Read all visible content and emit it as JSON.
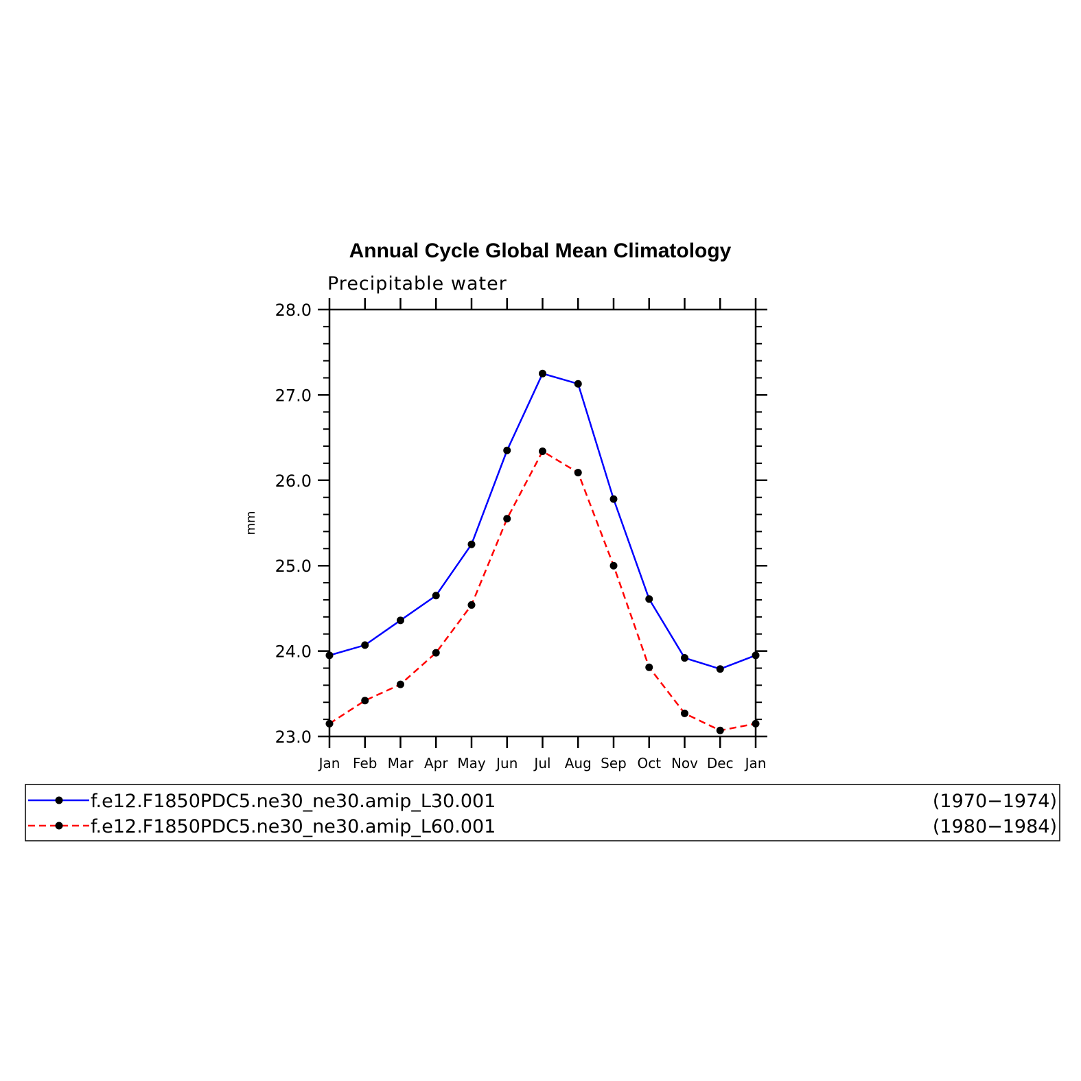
{
  "chart_data": {
    "type": "line",
    "title": "Annual Cycle Global Mean Climatology",
    "subtitle": "Precipitable water",
    "xlabel": "",
    "ylabel": "mm",
    "categories": [
      "Jan",
      "Feb",
      "Mar",
      "Apr",
      "May",
      "Jun",
      "Jul",
      "Aug",
      "Sep",
      "Oct",
      "Nov",
      "Dec",
      "Jan"
    ],
    "ylim": [
      23.0,
      28.0
    ],
    "yticks": [
      "23.0",
      "24.0",
      "25.0",
      "26.0",
      "27.0",
      "28.0"
    ],
    "grid": false,
    "legend_position": "bottom",
    "series": [
      {
        "name": "f.e12.F1850PDC5.ne30_ne30.amip_L30.001",
        "period": "(1970−1974)",
        "color": "#0000ff",
        "line_style": "solid",
        "values": [
          23.95,
          24.07,
          24.36,
          24.65,
          25.25,
          26.35,
          27.25,
          27.13,
          25.78,
          24.61,
          23.92,
          23.79,
          23.95
        ]
      },
      {
        "name": "f.e12.F1850PDC5.ne30_ne30.amip_L60.001",
        "period": "(1980−1984)",
        "color": "#ff0000",
        "line_style": "dashed",
        "values": [
          23.15,
          23.42,
          23.61,
          23.98,
          24.54,
          25.55,
          26.34,
          26.09,
          25.0,
          23.81,
          23.27,
          23.07,
          23.15
        ]
      }
    ]
  }
}
